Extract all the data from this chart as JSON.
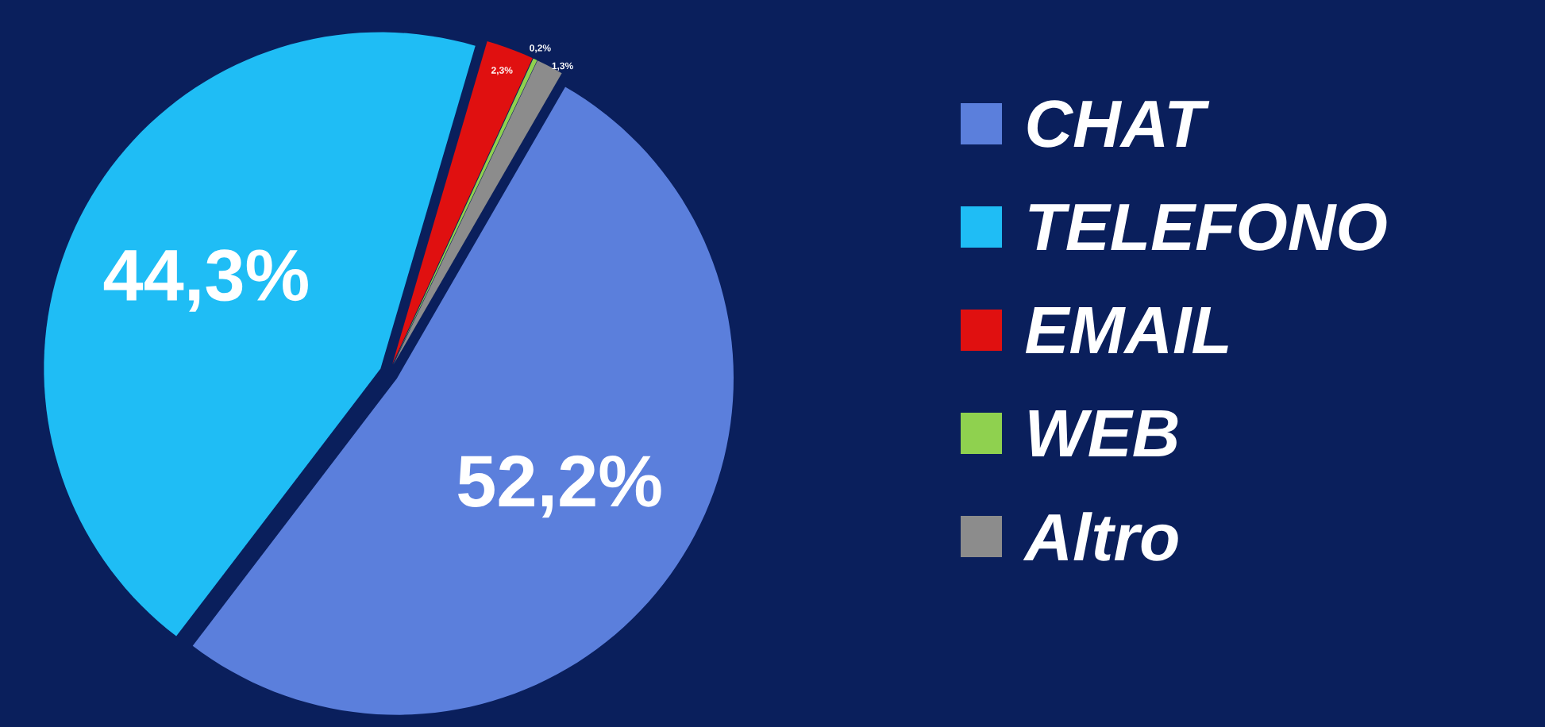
{
  "chart_data": {
    "type": "pie",
    "categories": [
      "CHAT",
      "TELEFONO",
      "EMAIL",
      "WEB",
      "Altro"
    ],
    "values": [
      52.2,
      44.3,
      2.3,
      0.2,
      1.3
    ],
    "value_labels": [
      "52,2%",
      "44,3%",
      "2,3%",
      "0,2%",
      "1,3%"
    ],
    "colors": [
      "#5b7fdc",
      "#1fbdf5",
      "#e01010",
      "#8fd14f",
      "#8c8c8c"
    ],
    "legend": "right"
  }
}
